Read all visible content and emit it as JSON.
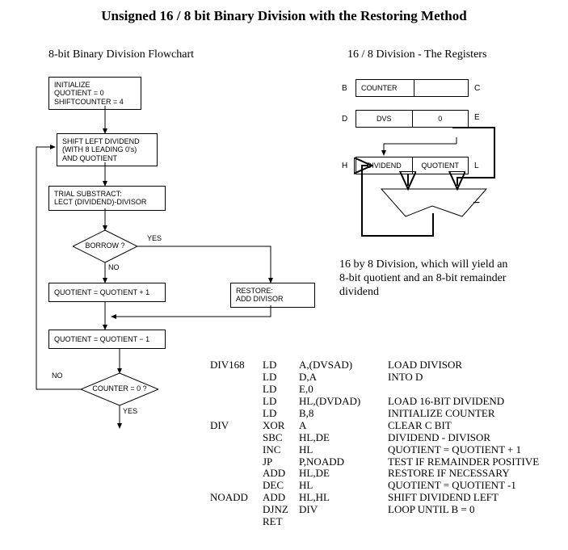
{
  "title": "Unsigned 16 / 8 bit Binary Division with the Restoring Method",
  "left_subtitle": "8-bit Binary Division Flowchart",
  "right_subtitle": "16 / 8 Division - The Registers",
  "flow": {
    "init_l1": "INITIALIZE",
    "init_l2": "QUOTIENT = 0",
    "init_l3": "SHIFTCOUNTER = 4",
    "shift_l1": "SHIFT LEFT DIVIDEND",
    "shift_l2": "(WITH 8 LEADING 0's)",
    "shift_l3": "AND QUOTIENT",
    "trial_l1": "TRIAL SUBSTRACT:",
    "trial_l2": "LECT (DIVIDEND)-DIVISOR",
    "borrow": "BORROW ?",
    "yes": "YES",
    "no": "NO",
    "qplus": "QUOTIENT = QUOTIENT + 1",
    "restore_l1": "RESTORE:",
    "restore_l2": "ADD DIVISOR",
    "qminus": "QUOTIENT = QUOTIENT − 1",
    "counter": "COUNTER = 0 ?",
    "no2": "NO",
    "yes2": "YES"
  },
  "registers": {
    "B": "B",
    "C": "C",
    "D": "D",
    "E": "E",
    "H": "H",
    "L": "L",
    "counter": "COUNTER",
    "dvs": "DVS",
    "zero": "0",
    "dividend": "DIVIDEND",
    "quotient": "QUOTIENT",
    "minus": "−"
  },
  "caption_l1": "16 by 8 Division, which will yield an",
  "caption_l2": "8-bit quotient and an 8-bit remainder",
  "caption_l3": "dividend",
  "asm": [
    [
      "DIV168",
      "LD",
      "A,(DVSAD)",
      "LOAD DIVISOR"
    ],
    [
      "",
      "LD",
      "D,A",
      "INTO D"
    ],
    [
      "",
      "LD",
      "E,0",
      ""
    ],
    [
      "",
      "LD",
      "HL,(DVDAD)",
      "LOAD 16-BIT DIVIDEND"
    ],
    [
      "",
      "LD",
      "B,8",
      "INITIALIZE COUNTER"
    ],
    [
      "DIV",
      "XOR",
      "A",
      "CLEAR C BIT"
    ],
    [
      "",
      "SBC",
      "HL,DE",
      "DIVIDEND - DIVISOR"
    ],
    [
      "",
      "INC",
      "HL",
      "QUOTIENT = QUOTIENT + 1"
    ],
    [
      "",
      "JP",
      "P,NOADD",
      "TEST IF REMAINDER POSITIVE"
    ],
    [
      "",
      "ADD",
      "HL,DE",
      "RESTORE IF NECESSARY"
    ],
    [
      "",
      "DEC",
      "HL",
      "QUOTIENT = QUOTIENT -1"
    ],
    [
      "NOADD",
      "ADD",
      "HL,HL",
      "SHIFT DIVIDEND LEFT"
    ],
    [
      "",
      "DJNZ",
      "DIV",
      "LOOP UNTIL B = 0"
    ],
    [
      "",
      "RET",
      "",
      ""
    ]
  ],
  "colors": {
    "fg": "#000000",
    "bg": "#ffffff"
  }
}
